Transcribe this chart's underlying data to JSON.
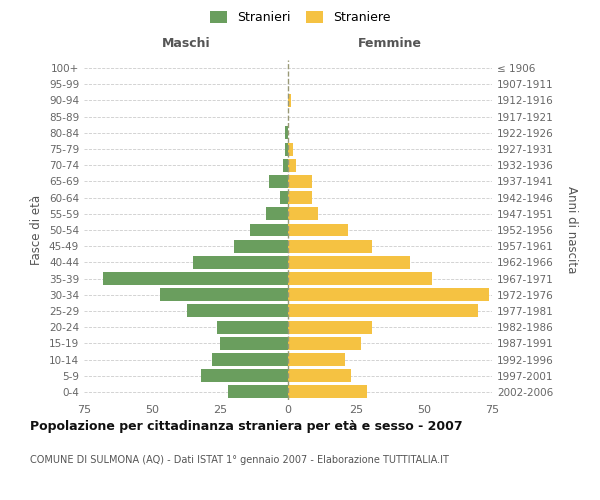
{
  "age_groups": [
    "0-4",
    "5-9",
    "10-14",
    "15-19",
    "20-24",
    "25-29",
    "30-34",
    "35-39",
    "40-44",
    "45-49",
    "50-54",
    "55-59",
    "60-64",
    "65-69",
    "70-74",
    "75-79",
    "80-84",
    "85-89",
    "90-94",
    "95-99",
    "100+"
  ],
  "birth_years": [
    "2002-2006",
    "1997-2001",
    "1992-1996",
    "1987-1991",
    "1982-1986",
    "1977-1981",
    "1972-1976",
    "1967-1971",
    "1962-1966",
    "1957-1961",
    "1952-1956",
    "1947-1951",
    "1942-1946",
    "1937-1941",
    "1932-1936",
    "1927-1931",
    "1922-1926",
    "1917-1921",
    "1912-1916",
    "1907-1911",
    "≤ 1906"
  ],
  "males": [
    22,
    32,
    28,
    25,
    26,
    37,
    47,
    68,
    35,
    20,
    14,
    8,
    3,
    7,
    2,
    1,
    1,
    0,
    0,
    0,
    0
  ],
  "females": [
    29,
    23,
    21,
    27,
    31,
    70,
    74,
    53,
    45,
    31,
    22,
    11,
    9,
    9,
    3,
    2,
    0,
    0,
    1,
    0,
    0
  ],
  "male_color": "#6a9e5e",
  "female_color": "#f5c242",
  "background_color": "#ffffff",
  "grid_color": "#cccccc",
  "title": "Popolazione per cittadinanza straniera per età e sesso - 2007",
  "subtitle": "COMUNE DI SULMONA (AQ) - Dati ISTAT 1° gennaio 2007 - Elaborazione TUTTITALIA.IT",
  "ylabel_left": "Fasce di età",
  "ylabel_right": "Anni di nascita",
  "xlabel_left": "Maschi",
  "xlabel_right": "Femmine",
  "legend_male": "Stranieri",
  "legend_female": "Straniere",
  "xlim": 75
}
